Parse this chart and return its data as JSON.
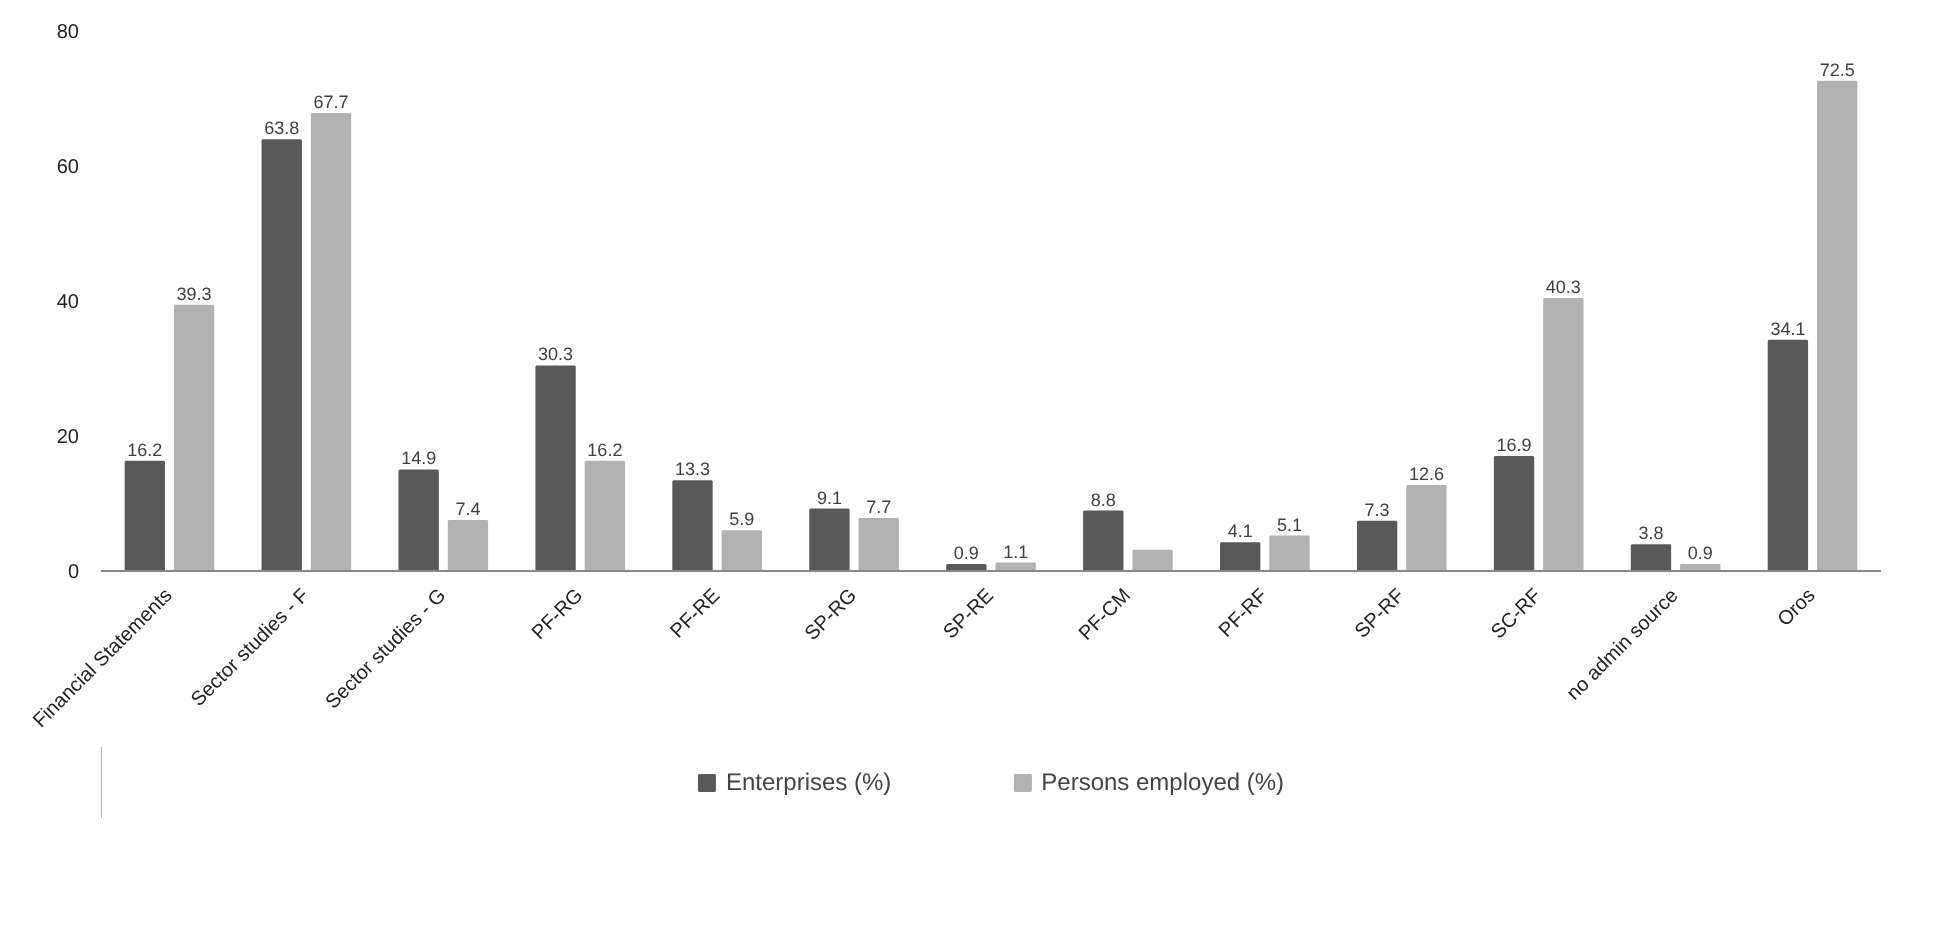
{
  "chart_data": {
    "type": "bar",
    "categories": [
      "Financial Statements",
      "Sector studies - F",
      "Sector studies - G",
      "PF-RG",
      "PF-RE",
      "SP-RG",
      "SP-RE",
      "PF-CM",
      "PF-RF",
      "SP-RF",
      "SC-RF",
      "no admin source",
      "Oros"
    ],
    "series": [
      {
        "name": "Enterprises (%)",
        "color": "#595959",
        "values": [
          16.2,
          63.8,
          14.9,
          30.3,
          13.3,
          9.1,
          0.9,
          8.8,
          4.1,
          7.3,
          16.9,
          3.8,
          34.1
        ],
        "value_labels": [
          "16.2",
          "63.8",
          "14.9",
          "30.3",
          "13.3",
          "9.1",
          "0.9",
          "8.8",
          "4.1",
          "7.3",
          "16.9",
          "3.8",
          "34.1"
        ]
      },
      {
        "name": "Persons employed (%)",
        "color": "#b2b2b2",
        "values": [
          39.3,
          67.7,
          7.4,
          16.2,
          5.9,
          7.7,
          1.1,
          3.0,
          5.1,
          12.6,
          40.3,
          0.9,
          72.5
        ],
        "value_labels": [
          "39.3",
          "67.7",
          "7.4",
          "16.2",
          "5.9",
          "7.7",
          "1.1",
          null,
          "5.1",
          "12.6",
          "40.3",
          "0.9",
          "72.5"
        ]
      }
    ],
    "ylim": [
      0,
      80
    ],
    "yticks": [
      0,
      20,
      40,
      60,
      80
    ],
    "grid": false,
    "legend": "bottom"
  }
}
